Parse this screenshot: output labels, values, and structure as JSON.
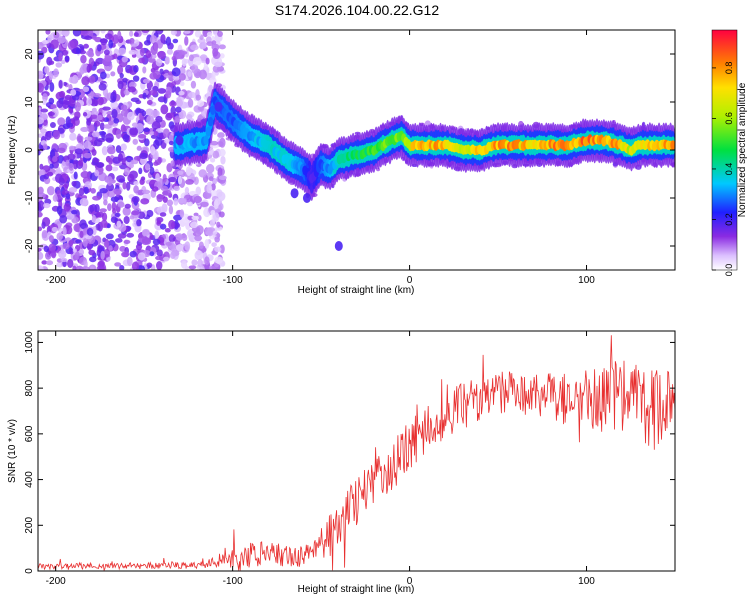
{
  "title": "S174.2026.104.00.22.G12",
  "chart_data": [
    {
      "type": "heatmap",
      "title": "S174.2026.104.00.22.G12",
      "xlabel": "Height of straight line (km)",
      "ylabel": "Frequency (Hz)",
      "xlim": [
        -210,
        150
      ],
      "ylim": [
        -25,
        25
      ],
      "xticks": [
        -200,
        -100,
        0,
        100
      ],
      "yticks": [
        -20,
        -10,
        0,
        10,
        20
      ],
      "xtick_labels": [
        "-200",
        "-100",
        "0",
        "100"
      ],
      "ytick_labels": [
        "-20",
        "-10",
        "0",
        "10",
        "20"
      ],
      "colorbar": {
        "label": "Normalized spectral amplitude",
        "range": [
          0,
          0.95
        ],
        "ticks": [
          0.0,
          0.2,
          0.4,
          0.6,
          0.8
        ],
        "tick_labels": [
          "0.0",
          "0.2",
          "0.4",
          "0.6",
          "0.8"
        ]
      },
      "ridge": {
        "x": [
          -130,
          -115,
          -110,
          -100,
          -90,
          -80,
          -70,
          -60,
          -55,
          -50,
          -45,
          -40,
          -30,
          -20,
          -10,
          -5,
          0,
          10,
          20,
          30,
          40,
          50,
          60,
          70,
          80,
          90,
          100,
          110,
          120,
          125,
          130,
          140,
          150
        ],
        "y": [
          1,
          2,
          10,
          6,
          3,
          1,
          -2,
          -4,
          -6,
          -3,
          -4,
          -2,
          -1,
          0,
          2,
          3,
          1,
          1,
          1,
          0,
          0,
          1,
          1,
          1,
          1,
          1,
          2,
          2,
          1,
          0,
          1,
          1,
          1
        ],
        "amplitude": [
          0.35,
          0.35,
          0.3,
          0.3,
          0.35,
          0.4,
          0.4,
          0.3,
          0.2,
          0.3,
          0.35,
          0.45,
          0.5,
          0.55,
          0.6,
          0.6,
          0.75,
          0.85,
          0.85,
          0.75,
          0.8,
          0.85,
          0.85,
          0.8,
          0.85,
          0.9,
          0.9,
          0.9,
          0.85,
          0.7,
          0.8,
          0.85,
          0.85
        ]
      },
      "noise_region": {
        "x": [
          -210,
          -115
        ],
        "amplitude": [
          0.05,
          0.2
        ]
      }
    },
    {
      "type": "line",
      "xlabel": "Height of straight line (km)",
      "ylabel": "SNR (10 * v/v)",
      "xlim": [
        -210,
        150
      ],
      "ylim": [
        0,
        1050
      ],
      "xticks": [
        -200,
        -100,
        0,
        100
      ],
      "yticks": [
        0,
        200,
        400,
        600,
        800,
        1000
      ],
      "xtick_labels": [
        "-200",
        "-100",
        "0",
        "100"
      ],
      "ytick_labels": [
        "0",
        "200",
        "400",
        "600",
        "800",
        "1000"
      ],
      "color": "#e83030",
      "envelope": {
        "x": [
          -210,
          -120,
          -110,
          -100,
          -80,
          -70,
          -60,
          -50,
          -40,
          -30,
          -20,
          -10,
          0,
          10,
          20,
          30,
          40,
          60,
          80,
          100,
          120,
          140,
          150
        ],
        "mean": [
          20,
          25,
          40,
          60,
          80,
          70,
          60,
          120,
          200,
          300,
          380,
          450,
          550,
          620,
          680,
          730,
          760,
          780,
          760,
          750,
          760,
          700,
          700
        ],
        "spread": [
          12,
          15,
          25,
          50,
          60,
          50,
          45,
          80,
          110,
          110,
          110,
          110,
          110,
          100,
          100,
          100,
          100,
          100,
          110,
          130,
          170,
          180,
          170
        ]
      }
    }
  ],
  "colors": {
    "line": "#e83030",
    "axis": "#000000",
    "background": "#ffffff"
  }
}
